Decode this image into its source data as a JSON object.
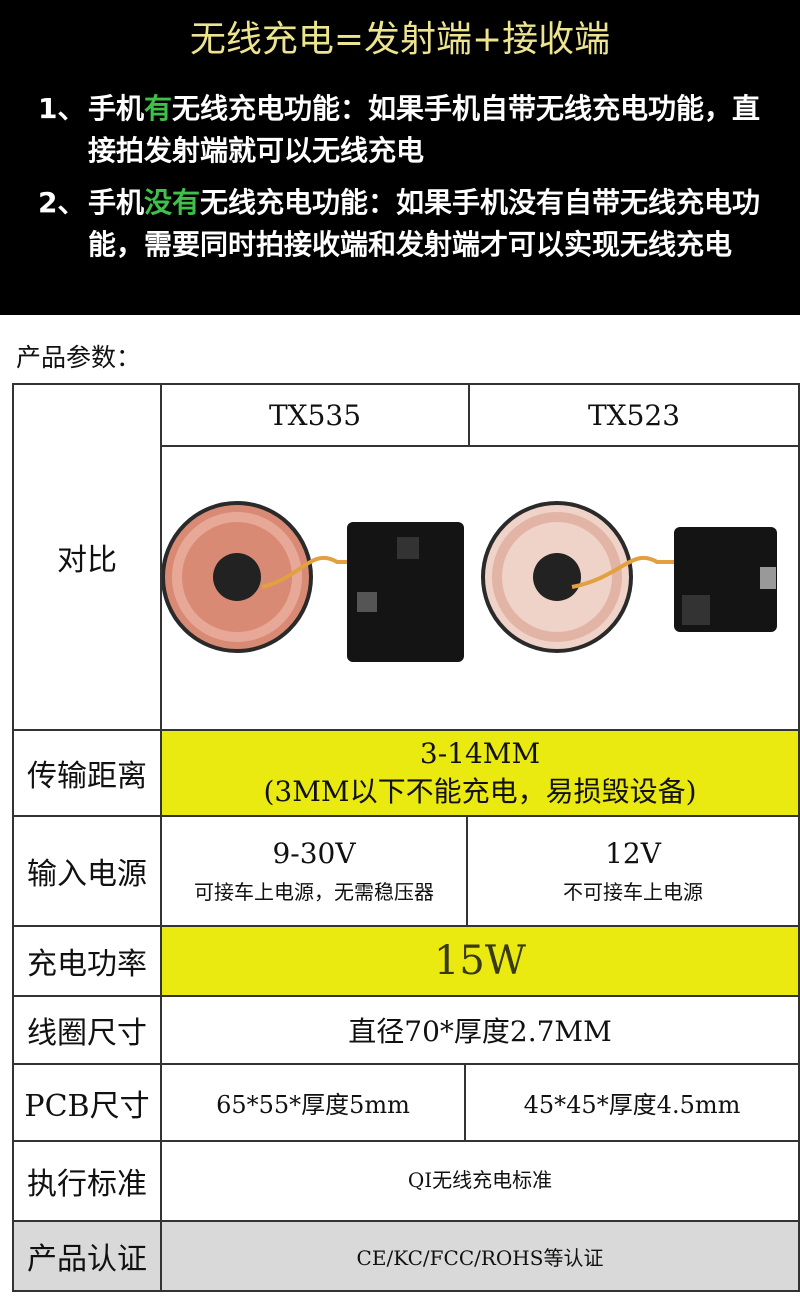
{
  "header": {
    "title": "无线充电=发射端+接收端",
    "points": [
      {
        "number": "1、",
        "parts": [
          "手机",
          "有",
          "无线充电功能：如果手机自带无线充电功能，直接拍发射端就可以无线充电"
        ]
      },
      {
        "number": "2、",
        "parts": [
          "手机",
          "没有",
          "无线充电功能：如果手机没有自带无线充电功能，需要同时拍接收端和发射端才可以实现无线充电"
        ]
      }
    ]
  },
  "section_label": "产品参数：",
  "table": {
    "columns": [
      "TX535",
      "TX523"
    ],
    "image_row_label": "对比",
    "rows": [
      {
        "label": "传输距离",
        "merged": [
          "3-14MM",
          "(3MM以下不能充电，易损毁设备)"
        ]
      },
      {
        "label": "输入电源",
        "cells": [
          [
            "9-30V",
            "可接车上电源，无需稳压器"
          ],
          [
            "12V",
            "不可接车上电源"
          ]
        ]
      },
      {
        "label": "充电功率",
        "merged": [
          "15W"
        ]
      },
      {
        "label": "线圈尺寸",
        "merged": [
          "直径70*厚度2.7MM"
        ]
      },
      {
        "label": "PCB尺寸",
        "cells": [
          [
            "65*55*厚度5mm"
          ],
          [
            "45*45*厚度4.5mm"
          ]
        ]
      },
      {
        "label": "执行标准",
        "merged": [
          "QI无线充电标准"
        ]
      },
      {
        "label": "产品认证",
        "merged": [
          "CE/KC/FCC/ROHS等认证"
        ]
      }
    ]
  }
}
